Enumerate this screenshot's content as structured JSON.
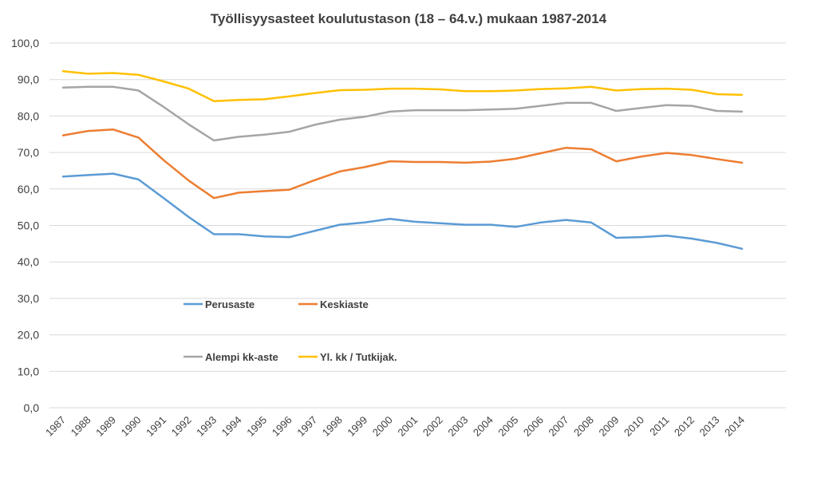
{
  "chart_data": {
    "type": "line",
    "title": "Työllisyysasteet koulutustason (18 – 64.v.)  mukaan 1987-2014",
    "xlabel": "",
    "ylabel": "",
    "ylim": [
      0,
      100
    ],
    "yticks": [
      "0,0",
      "10,0",
      "20,0",
      "30,0",
      "40,0",
      "50,0",
      "60,0",
      "70,0",
      "80,0",
      "90,0",
      "100,0"
    ],
    "grid": true,
    "legend_position": "center-left",
    "x": [
      "1987",
      "1988",
      "1989",
      "1990",
      "1991",
      "1992",
      "1993",
      "1994",
      "1995",
      "1996",
      "1997",
      "1998",
      "1999",
      "2000",
      "2001",
      "2002",
      "2003",
      "2004",
      "2005",
      "2006",
      "2007",
      "2008",
      "2009",
      "2010",
      "2011",
      "2012",
      "2013",
      "2014"
    ],
    "series": [
      {
        "name": "Perusaste",
        "color": "#5b9bd5",
        "values": [
          63.4,
          63.8,
          64.2,
          62.6,
          57.5,
          52.3,
          47.6,
          47.6,
          47.0,
          46.8,
          48.5,
          50.2,
          50.8,
          51.8,
          51.0,
          50.6,
          50.2,
          50.2,
          49.6,
          50.8,
          51.5,
          50.8,
          46.6,
          46.8,
          47.2,
          46.4,
          45.2,
          43.6
        ]
      },
      {
        "name": "Keskiaste",
        "color": "#ed7d31",
        "values": [
          74.7,
          75.9,
          76.3,
          74.1,
          67.9,
          62.3,
          57.5,
          59.0,
          59.4,
          59.8,
          62.4,
          64.8,
          66.0,
          67.6,
          67.4,
          67.4,
          67.2,
          67.5,
          68.3,
          69.8,
          71.3,
          70.9,
          67.6,
          68.9,
          69.9,
          69.3,
          68.2,
          67.2
        ]
      },
      {
        "name": "Alempi kk-aste",
        "color": "#a5a5a5",
        "values": [
          87.8,
          88.0,
          88.0,
          87.0,
          82.5,
          77.7,
          73.3,
          74.3,
          74.9,
          75.7,
          77.6,
          79.0,
          79.8,
          81.2,
          81.6,
          81.6,
          81.6,
          81.8,
          82.0,
          82.8,
          83.6,
          83.6,
          81.4,
          82.2,
          83.0,
          82.8,
          81.4,
          81.2
        ]
      },
      {
        "name": "Yl. kk / Tutkijak.",
        "color": "#ffc000",
        "values": [
          92.3,
          91.6,
          91.8,
          91.3,
          89.5,
          87.5,
          84.1,
          84.4,
          84.6,
          85.4,
          86.3,
          87.1,
          87.2,
          87.5,
          87.5,
          87.3,
          86.8,
          86.8,
          87.0,
          87.4,
          87.6,
          88.0,
          87.0,
          87.4,
          87.5,
          87.2,
          86.0,
          85.8
        ]
      }
    ]
  }
}
